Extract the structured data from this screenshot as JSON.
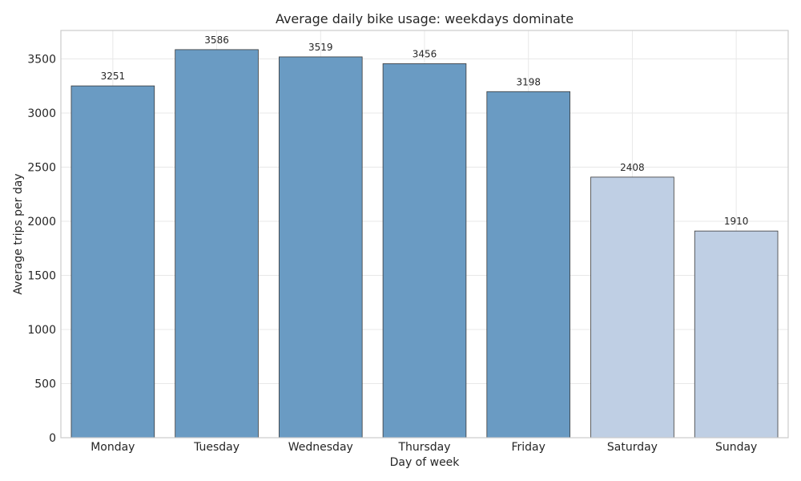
{
  "chart_data": {
    "type": "bar",
    "title": "Average daily bike usage: weekdays dominate",
    "xlabel": "Day of week",
    "ylabel": "Average trips per day",
    "categories": [
      "Monday",
      "Tuesday",
      "Wednesday",
      "Thursday",
      "Friday",
      "Saturday",
      "Sunday"
    ],
    "values": [
      3251,
      3586,
      3519,
      3456,
      3198,
      2408,
      1910
    ],
    "ylim": [
      0,
      3763
    ],
    "yticks": [
      0,
      500,
      1000,
      1500,
      2000,
      2500,
      3000,
      3500
    ],
    "grid": true,
    "colors": {
      "weekday": "#6a9bc3",
      "weekend": "#bfcfe4",
      "edge": "#3a3a3a"
    },
    "bar_colors": [
      "weekday",
      "weekday",
      "weekday",
      "weekday",
      "weekday",
      "weekend",
      "weekend"
    ]
  }
}
